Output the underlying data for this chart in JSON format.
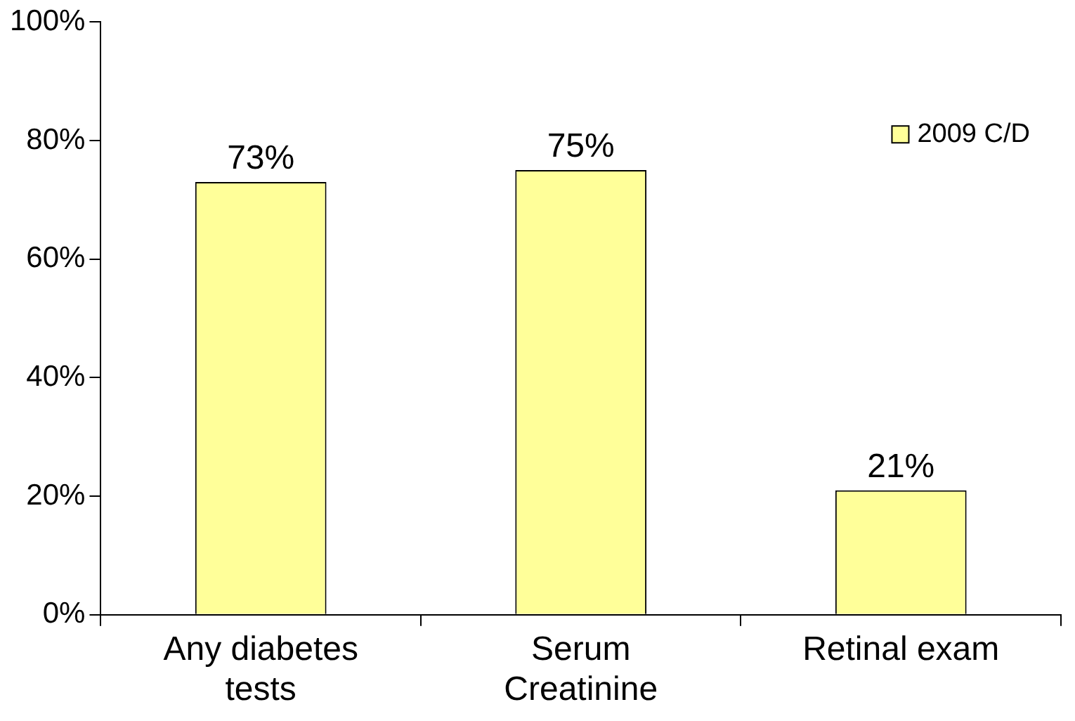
{
  "chart_data": {
    "type": "bar",
    "categories": [
      "Any diabetes tests",
      "Serum Creatinine",
      "Retinal exam"
    ],
    "series": [
      {
        "name": "2009 C/D",
        "color": "#ffff99",
        "values": [
          73,
          75,
          21
        ]
      }
    ],
    "value_labels": [
      "73%",
      "75%",
      "21%"
    ],
    "ylim": [
      0,
      100
    ],
    "yticks": [
      {
        "value": 0,
        "label": "0%"
      },
      {
        "value": 20,
        "label": "20%"
      },
      {
        "value": 40,
        "label": "40%"
      },
      {
        "value": 60,
        "label": "60%"
      },
      {
        "value": 80,
        "label": "80%"
      },
      {
        "value": 100,
        "label": "100%"
      }
    ],
    "grid": false,
    "legend": "top right"
  }
}
